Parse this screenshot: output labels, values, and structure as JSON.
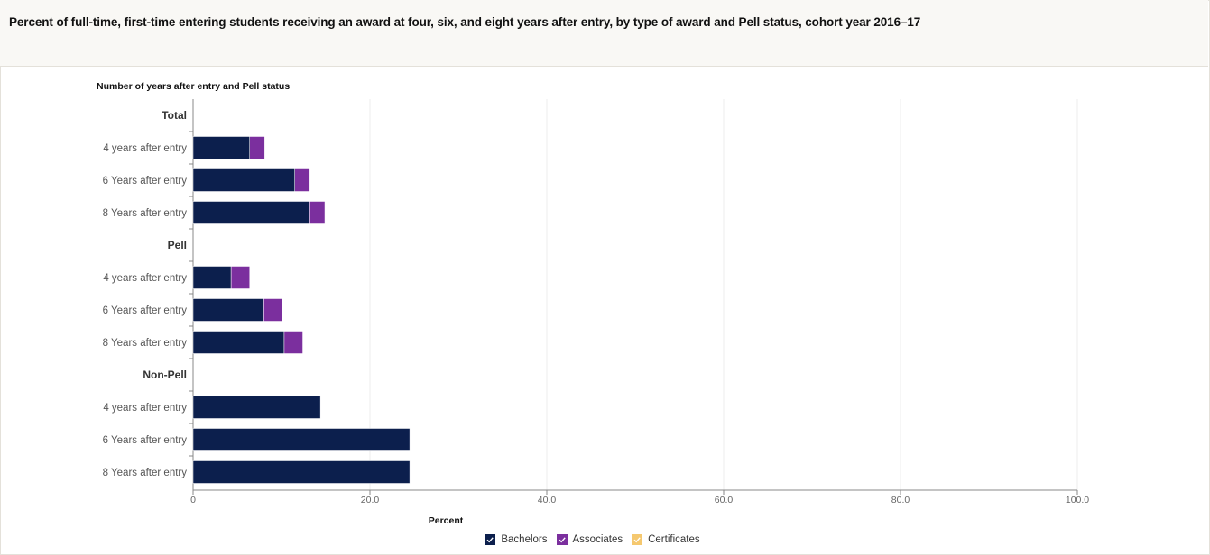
{
  "title": "Percent of full-time, first-time entering students receiving an award at four, six, and eight years after entry, by type of award and Pell status, cohort year 2016–17",
  "colors": {
    "bachelors": "#0c1f4d",
    "associates": "#7b2f9e",
    "certificates": "#f5c86f",
    "header_bg": "#f9f8f5",
    "grid": "#ececec",
    "axis": "#888888"
  },
  "chart_data": {
    "type": "bar",
    "orientation": "horizontal",
    "stacked": true,
    "ylabel": "Number of years after entry and Pell status",
    "xlabel": "Percent",
    "xlim": [
      0,
      100
    ],
    "x_ticks": [
      "0",
      "20.0",
      "40.0",
      "60.0",
      "80.0",
      "100.0"
    ],
    "grid": true,
    "legend_position": "bottom",
    "categories": [
      {
        "label": "Total",
        "is_group": true
      },
      {
        "label": "4 years after entry"
      },
      {
        "label": "6 Years after entry"
      },
      {
        "label": "8 Years after entry"
      },
      {
        "label": "Pell",
        "is_group": true
      },
      {
        "label": "4 years after entry"
      },
      {
        "label": "6 Years after entry"
      },
      {
        "label": "8 Years after entry"
      },
      {
        "label": "Non-Pell",
        "is_group": true
      },
      {
        "label": "4 years after entry"
      },
      {
        "label": "6 Years after entry"
      },
      {
        "label": "8 Years after entry"
      }
    ],
    "series": [
      {
        "name": "Bachelors",
        "color": "#0c1f4d",
        "values": [
          null,
          6.4,
          11.5,
          13.2,
          null,
          4.3,
          8.0,
          10.3,
          null,
          14.4,
          24.5,
          24.5
        ]
      },
      {
        "name": "Associates",
        "color": "#7b2f9e",
        "values": [
          null,
          1.7,
          1.7,
          1.7,
          null,
          2.1,
          2.1,
          2.1,
          null,
          0,
          0,
          0
        ]
      },
      {
        "name": "Certificates",
        "color": "#f5c86f",
        "values": [
          null,
          0,
          0,
          0,
          null,
          0,
          0,
          0,
          null,
          0,
          0,
          0
        ]
      }
    ]
  }
}
